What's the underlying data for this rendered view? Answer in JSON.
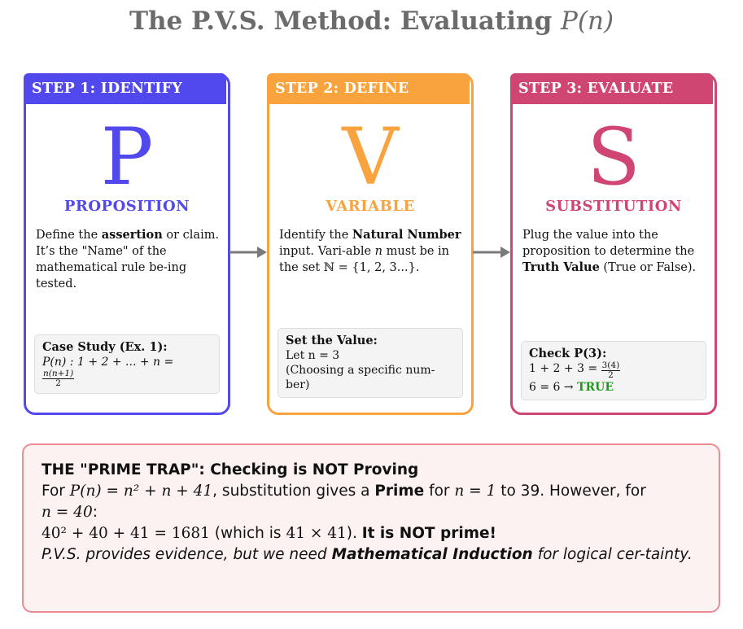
{
  "title": {
    "text": "The P.V.S. Method: Evaluating ",
    "math": "P(n)"
  },
  "cards": [
    {
      "tab": "STEP 1: IDENTIFY",
      "letter": "P",
      "word": "PROPOSITION",
      "desc": {
        "p1": "Define the ",
        "b1": "assertion",
        "p2": " or claim. It’s the \"Name\" of the mathematical rule be-ing tested."
      },
      "box": {
        "title": "Case Study (Ex. 1):",
        "line1": "P(n) : 1 + 2 + ... + n =",
        "frac_num": "n(n+1)",
        "frac_den": "2"
      }
    },
    {
      "tab": "STEP 2: DEFINE",
      "letter": "V",
      "word": "VARIABLE",
      "desc": {
        "p1": "Identify the ",
        "b1": "Natural Number",
        "p2": " input. Vari-able ",
        "var": "n",
        "p3": " must be in the set ℕ = {1, 2, 3...}."
      },
      "box": {
        "title": "Set the Value:",
        "line1": "Let n = 3",
        "line2": "(Choosing a specific num-ber)"
      }
    },
    {
      "tab": "STEP 3: EVALUATE",
      "letter": "S",
      "word": "SUBSTITUTION",
      "desc": {
        "p1": "Plug the value into the proposition to determine the ",
        "b1": "Truth Value",
        "p2": " (True or False)."
      },
      "box": {
        "title": "Check P(3):",
        "line1": "1 + 2 + 3 =",
        "frac_num": "3(4)",
        "frac_den": "2",
        "line2": "6 = 6 →",
        "result": "TRUE"
      }
    }
  ],
  "trap": {
    "heading": "THE \"PRIME TRAP\": Checking is NOT Proving",
    "l1a": "For ",
    "l1m": "P(n) = n² + n + 41",
    "l1b": ", substitution gives a ",
    "l1bold": "Prime",
    "l1c": " for ",
    "l1m2": "n = 1",
    "l1d": " to 39. However, for",
    "l2m": "n = 40",
    "l2a": ":",
    "l3m": "40² + 40 + 41 = 1681",
    "l3a": " (which is ",
    "l3m2": "41 × 41",
    "l3b": "). ",
    "l3bold": "It is NOT prime!",
    "l4a": "P.V.S. provides evidence, but we need ",
    "l4bold": "Mathematical Induction",
    "l4b": " for logical cer-tainty."
  },
  "colors": {
    "step1": "#5148ee",
    "step2": "#f8a33e",
    "step3": "#cf4673",
    "trap_border": "#ee8a92",
    "true": "#1a9a1a"
  },
  "icons": [
    "right-arrow-icon",
    "right-arrow-icon"
  ]
}
